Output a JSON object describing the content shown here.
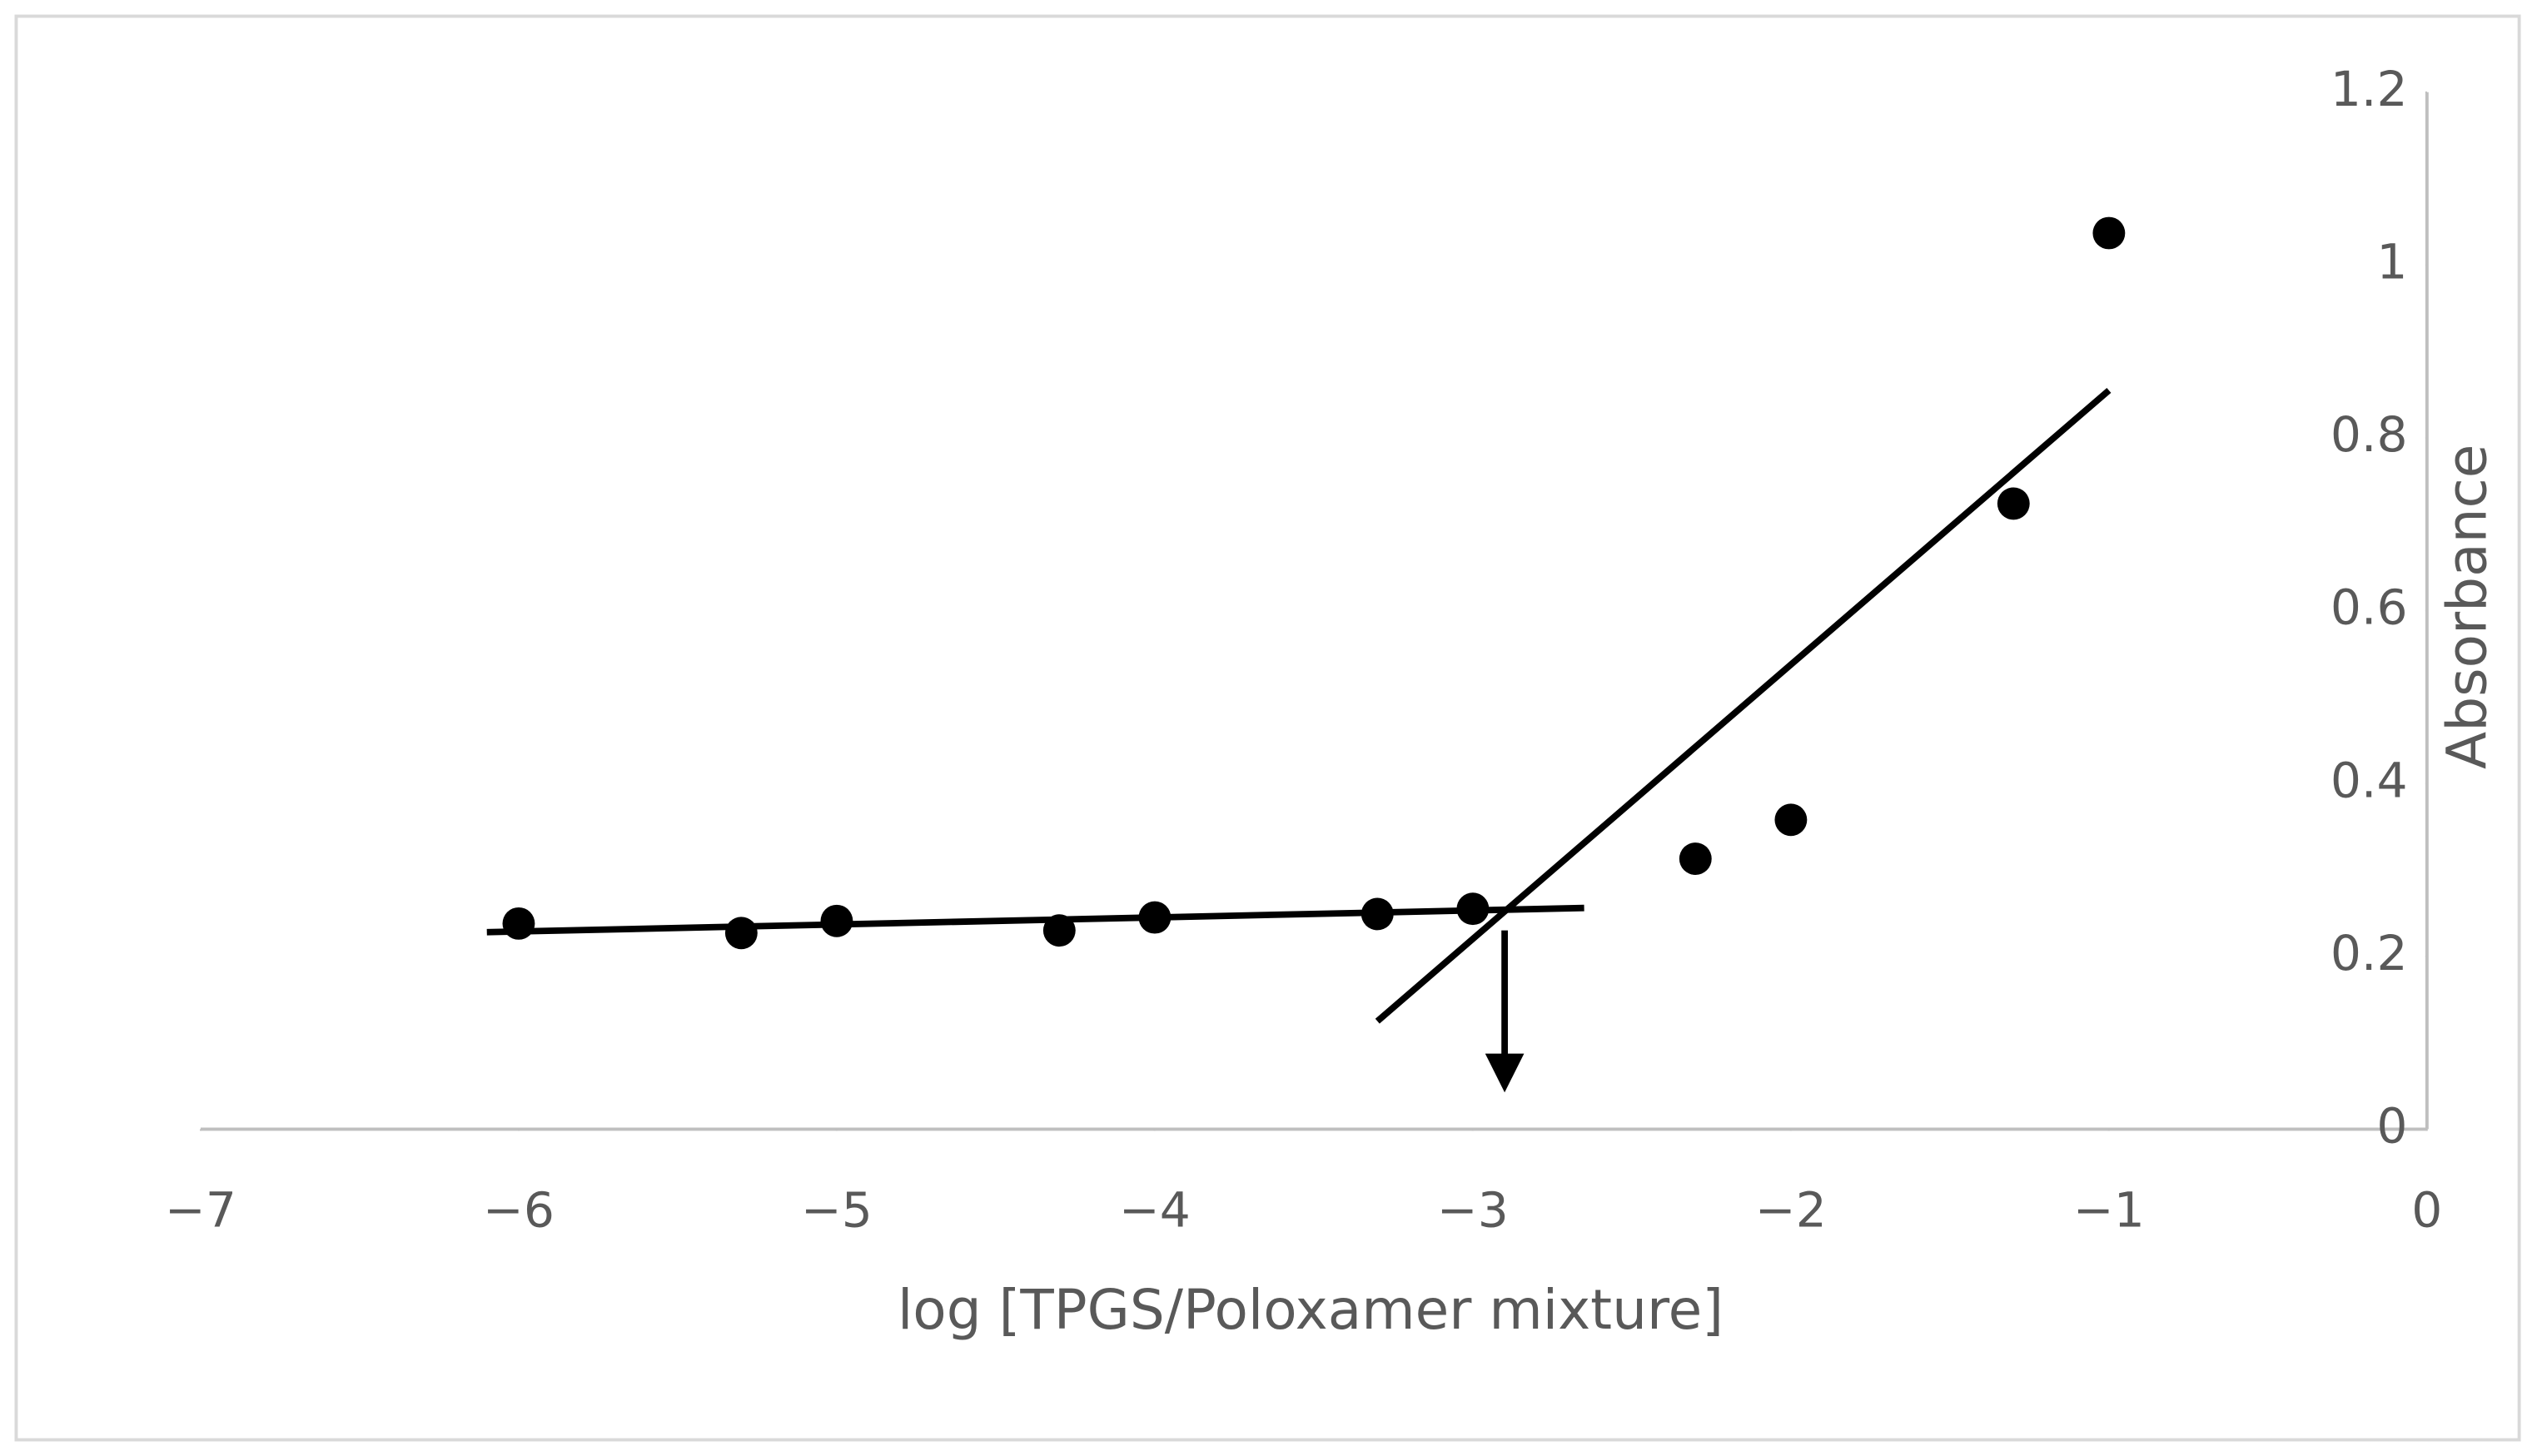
{
  "chart_data": {
    "type": "scatter",
    "x_label": "log [TPGS/Poloxamer mixture]",
    "y_label": "Absorbance",
    "xlim": [
      -7,
      0
    ],
    "xticks": [
      {
        "value": -7,
        "label": "−7"
      },
      {
        "value": -6,
        "label": "−6"
      },
      {
        "value": -5,
        "label": "−5"
      },
      {
        "value": -4,
        "label": "−4"
      },
      {
        "value": -3,
        "label": "−3"
      },
      {
        "value": -2,
        "label": "−2"
      },
      {
        "value": -1,
        "label": "−1"
      },
      0
    ],
    "ylim": [
      0,
      1.2
    ],
    "yticks": [
      0,
      0.2,
      0.4,
      0.6,
      0.8,
      1,
      1.2
    ],
    "series": [
      {
        "color": "#000000",
        "x": [
          -6,
          -5.3,
          -5,
          -4.3,
          -4,
          -3.3,
          -3,
          -2.3,
          -2,
          -1.3,
          -1
        ],
        "values": [
          0.238,
          0.227,
          0.241,
          0.23,
          0.245,
          0.249,
          0.255,
          0.313,
          0.358,
          0.724,
          1.037
        ]
      }
    ],
    "trendlines": [
      {
        "color": "#000000",
        "x": [
          -6.1,
          -2.65
        ],
        "values": [
          0.228,
          0.256
        ]
      },
      {
        "color": "#000000",
        "x": [
          -3.3,
          -1.0
        ],
        "values": [
          0.125,
          0.855
        ]
      }
    ],
    "arrow": {
      "color": "#000000",
      "x": [
        -2.9,
        -2.9
      ],
      "values": [
        0.23,
        0.05
      ]
    }
  }
}
